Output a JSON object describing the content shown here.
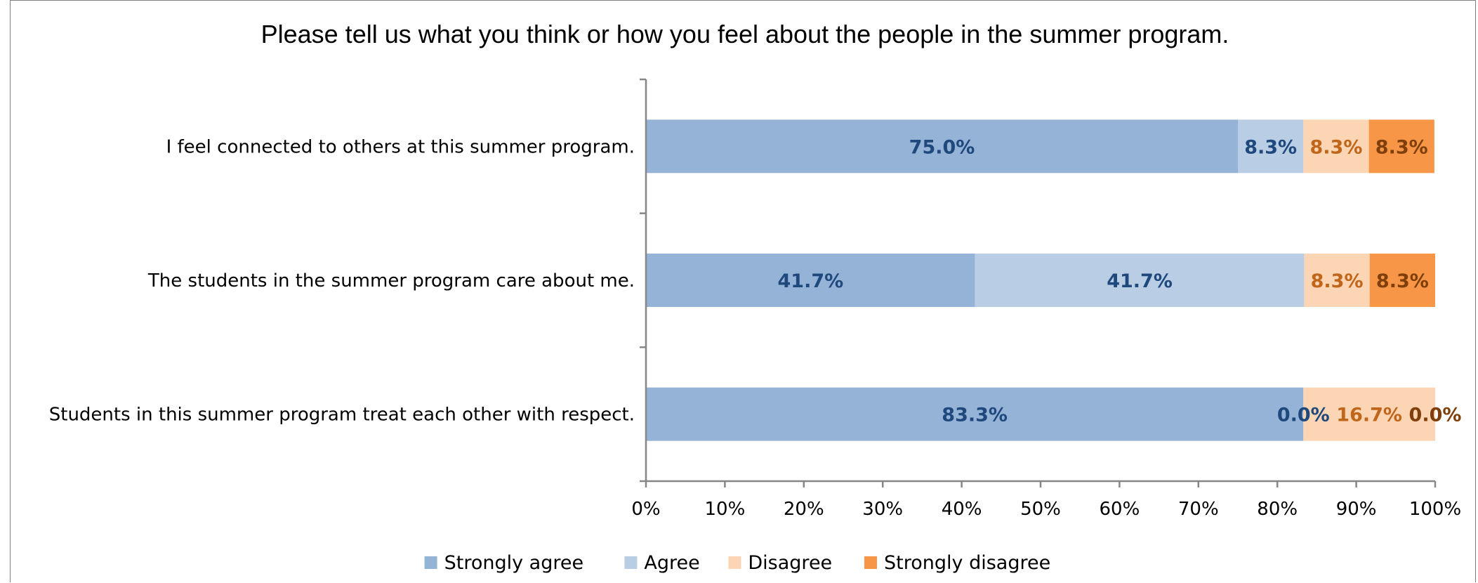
{
  "chart_data": {
    "type": "bar",
    "orientation": "horizontal",
    "stacked": true,
    "title": "Please tell us what you think or how you feel about the people in the summer program.",
    "categories": [
      "I feel connected to others at this summer program.",
      "The students in the summer program care about me.",
      "Students in this summer program treat each other with respect."
    ],
    "series": [
      {
        "name": "Strongly agree",
        "color": "#95B3D7",
        "label_color": "#1F497D",
        "values": [
          75.0,
          41.7,
          83.3
        ],
        "labels": [
          "75.0%",
          "41.7%",
          "83.3%"
        ]
      },
      {
        "name": "Agree",
        "color": "#B9CDE5",
        "label_color": "#1F497D",
        "values": [
          8.3,
          41.7,
          0.0
        ],
        "labels": [
          "8.3%",
          "41.7%",
          "0.0%"
        ]
      },
      {
        "name": "Disagree",
        "color": "#FCD5B5",
        "label_color": "#C0661A",
        "values": [
          8.3,
          8.3,
          16.7
        ],
        "labels": [
          "8.3%",
          "8.3%",
          "16.7%"
        ]
      },
      {
        "name": "Strongly disagree",
        "color": "#F79646",
        "label_color": "#7F3F0C",
        "values": [
          8.3,
          8.3,
          0.0
        ],
        "labels": [
          "8.3%",
          "8.3%",
          "0.0%"
        ]
      }
    ],
    "xlim": [
      0,
      100
    ],
    "xticks": [
      0,
      10,
      20,
      30,
      40,
      50,
      60,
      70,
      80,
      90,
      100
    ],
    "xtick_labels": [
      "0%",
      "10%",
      "20%",
      "30%",
      "40%",
      "50%",
      "60%",
      "70%",
      "80%",
      "90%",
      "100%"
    ],
    "xlabel": "",
    "ylabel": "",
    "grid": false,
    "legend_position": "bottom"
  }
}
